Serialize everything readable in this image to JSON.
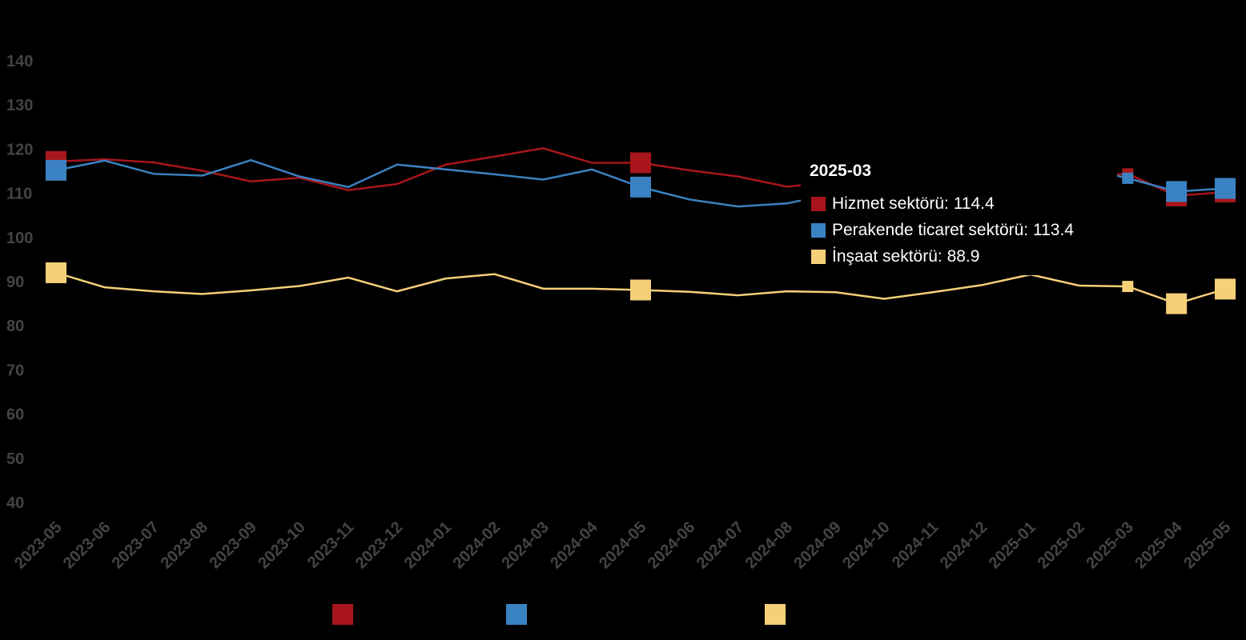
{
  "chart_data": {
    "type": "line",
    "x": [
      "2023-05",
      "2023-06",
      "2023-07",
      "2023-08",
      "2023-09",
      "2023-10",
      "2023-11",
      "2023-12",
      "2024-01",
      "2024-02",
      "2024-03",
      "2024-04",
      "2024-05",
      "2024-06",
      "2024-07",
      "2024-08",
      "2024-09",
      "2024-10",
      "2024-11",
      "2024-12",
      "2025-01",
      "2025-02",
      "2025-03",
      "2025-04",
      "2025-05"
    ],
    "ylim": [
      35,
      145
    ],
    "yticks": [
      40,
      50,
      60,
      70,
      80,
      90,
      100,
      110,
      120,
      130,
      140
    ],
    "series": [
      {
        "key": "hizmet",
        "color": "#a8161b",
        "highlight": [
          0,
          12,
          23,
          24
        ],
        "values": [
          117.2,
          117.7,
          117.0,
          115.1,
          112.7,
          113.5,
          110.7,
          112.1,
          116.5,
          118.3,
          120.2,
          116.9,
          116.9,
          115.2,
          113.8,
          111.5,
          112.6,
          114.5,
          110.5,
          112.9,
          116.0,
          113.8,
          114.4,
          109.4,
          110.3
        ]
      },
      {
        "key": "perakende",
        "color": "#3a82c2",
        "highlight": [
          0,
          12,
          23,
          24
        ],
        "values": [
          115.2,
          117.4,
          114.4,
          114.0,
          117.5,
          113.8,
          111.4,
          116.5,
          115.4,
          114.3,
          113.1,
          115.4,
          111.4,
          108.6,
          107.0,
          107.7,
          110.0,
          110.5,
          111.6,
          112.9,
          114.2,
          115.9,
          113.4,
          110.4,
          111.1
        ]
      },
      {
        "key": "insaat",
        "color": "#f6cf79",
        "highlight": [
          0,
          12,
          23,
          24
        ],
        "values": [
          92.0,
          88.7,
          87.8,
          87.2,
          88.0,
          89.0,
          90.9,
          87.8,
          90.7,
          91.7,
          88.4,
          88.4,
          88.1,
          87.7,
          86.9,
          87.8,
          87.6,
          86.1,
          87.6,
          89.2,
          91.6,
          89.1,
          88.9,
          85.0,
          88.3
        ]
      }
    ]
  },
  "tooltip": {
    "title": "2025-03",
    "hizmet": "Hizmet sektörü: 114.4",
    "perakende": "Perakende ticaret sektörü: 113.4",
    "insaat": "İnşaat sektörü: 88.9"
  },
  "tooltip_index": 22
}
